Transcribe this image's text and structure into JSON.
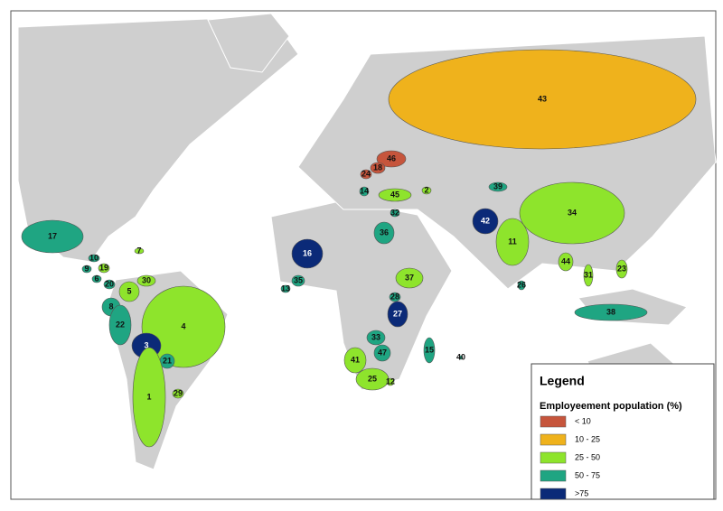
{
  "legend": {
    "title": "Legend",
    "subtitle": "Employeement population (%)",
    "entries": [
      {
        "label": "< 10",
        "color": "#c6553c"
      },
      {
        "label": "10 - 25",
        "color": "#efb21c"
      },
      {
        "label": "25 - 50",
        "color": "#8ee42c"
      },
      {
        "label": "50 - 75",
        "color": "#1fa582"
      },
      {
        "label": ">75",
        "color": "#0b2a78"
      }
    ]
  },
  "regions": [
    {
      "label": "43",
      "color": "#efb21c"
    },
    {
      "label": "46",
      "color": "#c6553c"
    },
    {
      "label": "18",
      "color": "#c6553c"
    },
    {
      "label": "24",
      "color": "#c6553c"
    },
    {
      "label": "14",
      "color": "#1fa582"
    },
    {
      "label": "45",
      "color": "#8ee42c"
    },
    {
      "label": "2",
      "color": "#8ee42c"
    },
    {
      "label": "32",
      "color": "#1fa582"
    },
    {
      "label": "39",
      "color": "#1fa582"
    },
    {
      "label": "34",
      "color": "#8ee42c"
    },
    {
      "label": "42",
      "color": "#0b2a78"
    },
    {
      "label": "36",
      "color": "#1fa582"
    },
    {
      "label": "11",
      "color": "#8ee42c"
    },
    {
      "label": "16",
      "color": "#0b2a78"
    },
    {
      "label": "7",
      "color": "#8ee42c"
    },
    {
      "label": "17",
      "color": "#1fa582"
    },
    {
      "label": "10",
      "color": "#1fa582"
    },
    {
      "label": "9",
      "color": "#1fa582"
    },
    {
      "label": "19",
      "color": "#8ee42c"
    },
    {
      "label": "6",
      "color": "#1fa582"
    },
    {
      "label": "20",
      "color": "#1fa582"
    },
    {
      "label": "30",
      "color": "#8ee42c"
    },
    {
      "label": "5",
      "color": "#8ee42c"
    },
    {
      "label": "13",
      "color": "#1fa582"
    },
    {
      "label": "35",
      "color": "#1fa582"
    },
    {
      "label": "37",
      "color": "#8ee42c"
    },
    {
      "label": "44",
      "color": "#8ee42c"
    },
    {
      "label": "31",
      "color": "#8ee42c"
    },
    {
      "label": "23",
      "color": "#8ee42c"
    },
    {
      "label": "26",
      "color": "#1fa582"
    },
    {
      "label": "28",
      "color": "#1fa582"
    },
    {
      "label": "27",
      "color": "#0b2a78"
    },
    {
      "label": "38",
      "color": "#1fa582"
    },
    {
      "label": "8",
      "color": "#1fa582"
    },
    {
      "label": "4",
      "color": "#8ee42c"
    },
    {
      "label": "22",
      "color": "#1fa582"
    },
    {
      "label": "3",
      "color": "#0b2a78"
    },
    {
      "label": "33",
      "color": "#1fa582"
    },
    {
      "label": "15",
      "color": "#1fa582"
    },
    {
      "label": "40",
      "color": "#1fa582"
    },
    {
      "label": "47",
      "color": "#1fa582"
    },
    {
      "label": "41",
      "color": "#8ee42c"
    },
    {
      "label": "21",
      "color": "#1fa582"
    },
    {
      "label": "25",
      "color": "#8ee42c"
    },
    {
      "label": "12",
      "color": "#8ee42c"
    },
    {
      "label": "1",
      "color": "#8ee42c"
    },
    {
      "label": "29",
      "color": "#8ee42c"
    }
  ]
}
